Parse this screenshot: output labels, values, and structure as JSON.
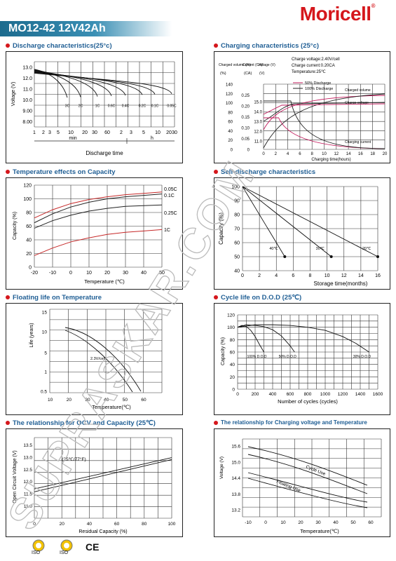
{
  "header": {
    "brand": "Moricell",
    "model": "MO12-42  12V42Ah"
  },
  "sections": {
    "discharge": "Discharge characteristics(25°c)",
    "charging": "Charging characteristics (25°c)",
    "temp_capacity": "Temperature effects on Capacity",
    "self_discharge": "Self-discharge characteristics",
    "floating_life": "Floating life on Temperature",
    "cycle_life": "Cycle life on D.O.D (25℃)",
    "ocv": "The relationship  for OCV and Capacity (25℃)",
    "charge_voltage_temp": "The relationship for Charging voltage and Temperature"
  },
  "chart_data": [
    {
      "type": "line",
      "id": "discharge",
      "ylabel": "Voltage (V)",
      "xlabel": "Discharge time",
      "x_ticks": [
        "1",
        "2",
        "3",
        "5",
        "10",
        "20",
        "30",
        "60",
        "2",
        "3",
        "5",
        "10",
        "20",
        "30"
      ],
      "x_units": [
        "min",
        "h"
      ],
      "y_ticks": [
        "8.00",
        "9.00",
        "10.0",
        "11.0",
        "12.0",
        "13.0"
      ],
      "ylim": [
        7.5,
        13.5
      ],
      "series_labels": [
        "3C",
        "2C",
        "1C",
        "0.6C",
        "0.4C",
        "0.2C",
        "0.1C",
        "0.05C"
      ]
    },
    {
      "type": "line",
      "id": "charging",
      "xlabel": "Charging time(hours)",
      "axis_titles": [
        "Charged volume (%)",
        "Current (CA)",
        "Voltage (V)"
      ],
      "axis_units": [
        "(%)",
        "(CA)",
        "(V)"
      ],
      "conditions": [
        "Charge voltage:2.40V/cell",
        "Charge current:0.20CA",
        "Temperature:25℃"
      ],
      "legend": [
        "50% Discharge",
        "100% Discharge"
      ],
      "annotations": [
        "Charged volume",
        "Charge voltage",
        "Charging current"
      ],
      "x_ticks": [
        "0",
        "2",
        "4",
        "6",
        "8",
        "10",
        "12",
        "14",
        "16",
        "18",
        "20"
      ],
      "pct_ticks": [
        "0",
        "20",
        "40",
        "60",
        "80",
        "100",
        "120",
        "140"
      ],
      "ca_ticks": [
        "0",
        "0.05",
        "0.10",
        "0.15",
        "0.20",
        "0.25"
      ],
      "v_ticks": [
        "11.0",
        "12.0",
        "13.0",
        "14.0",
        "15.0"
      ],
      "colors": {
        "fifty": "#c2185b",
        "hundred": "#222222"
      }
    },
    {
      "type": "line",
      "id": "temp_capacity",
      "ylabel": "Capacity  (%)",
      "xlabel": "Temperature (℃)",
      "x": [
        -20,
        -10,
        0,
        10,
        20,
        30,
        40,
        50
      ],
      "x_ticks": [
        "-20",
        "-10",
        "0",
        "10",
        "20",
        "30",
        "40",
        "50"
      ],
      "y_ticks": [
        "0",
        "20",
        "40",
        "60",
        "80",
        "100",
        "120"
      ],
      "ylim": [
        0,
        120
      ],
      "series": [
        {
          "name": "0.05C",
          "values": [
            72,
            84,
            93,
            99,
            103,
            106,
            108,
            110
          ],
          "color": "#c62828"
        },
        {
          "name": "0.1C",
          "values": [
            65,
            78,
            88,
            95,
            100,
            103,
            105,
            107
          ],
          "color": "#222222"
        },
        {
          "name": "0.25C",
          "values": [
            57,
            68,
            76,
            82,
            86,
            89,
            90,
            91
          ],
          "color": "#222222"
        },
        {
          "name": "1C",
          "values": [
            17,
            28,
            37,
            43,
            48,
            51,
            53,
            55
          ],
          "color": "#c62828"
        }
      ]
    },
    {
      "type": "line",
      "id": "self_discharge",
      "ylabel": "Capacity (%)",
      "xlabel": "Storage time(months)",
      "x_ticks": [
        "0",
        "2",
        "4",
        "6",
        "8",
        "10",
        "12",
        "14",
        "16"
      ],
      "y_ticks": [
        "40",
        "50",
        "60",
        "70",
        "80",
        "90",
        "100"
      ],
      "ylim": [
        40,
        100
      ],
      "series": [
        {
          "name": "40℃",
          "x": [
            0,
            5
          ],
          "values": [
            100,
            50
          ]
        },
        {
          "name": "30℃",
          "x": [
            0,
            10.5
          ],
          "values": [
            100,
            50
          ]
        },
        {
          "name": "20℃",
          "x": [
            0,
            16
          ],
          "values": [
            100,
            50
          ]
        }
      ]
    },
    {
      "type": "line",
      "id": "floating_life",
      "ylabel": "Life (years)",
      "xlabel": "Temperature(℃)",
      "x_ticks": [
        "10",
        "20",
        "30",
        "40",
        "50",
        "60"
      ],
      "y_ticks": [
        "0.5",
        "1",
        "5",
        "10",
        "15"
      ],
      "annotation": "2.3V/cell"
    },
    {
      "type": "line",
      "id": "cycle_life",
      "ylabel": "Capacity (%)",
      "xlabel": "Number of cycles (cycles)",
      "x_ticks": [
        "0",
        "200",
        "400",
        "600",
        "800",
        "1000",
        "1200",
        "1400",
        "1600"
      ],
      "y_ticks": [
        "0",
        "20",
        "40",
        "60",
        "80",
        "100",
        "120"
      ],
      "ylim": [
        0,
        120
      ],
      "series": [
        {
          "name": "100% D.O.D",
          "x": [
            0,
            50,
            100,
            150,
            200,
            250,
            300
          ],
          "values": [
            100,
            103,
            101,
            95,
            85,
            72,
            60
          ]
        },
        {
          "name": "50% D.O.D",
          "x": [
            0,
            100,
            200,
            300,
            400,
            500,
            600,
            650
          ],
          "values": [
            100,
            104,
            103,
            101,
            96,
            86,
            70,
            60
          ]
        },
        {
          "name": "30% D.O.D",
          "x": [
            0,
            200,
            400,
            600,
            800,
            1000,
            1200,
            1350,
            1500
          ],
          "values": [
            100,
            104,
            104,
            103,
            100,
            95,
            85,
            74,
            60
          ]
        }
      ]
    },
    {
      "type": "line",
      "id": "ocv",
      "ylabel": "Open Circuit Voltage (V)",
      "xlabel": "Residual Capacity (%)",
      "annotation": "(25℃/77°F)",
      "x_ticks": [
        "0",
        "20",
        "40",
        "60",
        "80",
        "100"
      ],
      "y_ticks": [
        "11.0",
        "11.5",
        "12.0",
        "12.5",
        "13.0",
        "13.5"
      ],
      "ylim": [
        10.5,
        13.8
      ],
      "series": [
        {
          "name": "upper",
          "x": [
            0,
            100
          ],
          "values": [
            11.7,
            12.98
          ]
        },
        {
          "name": "lower",
          "x": [
            0,
            100
          ],
          "values": [
            11.58,
            12.9
          ]
        }
      ]
    },
    {
      "type": "line",
      "id": "charge_voltage_temp",
      "ylabel": "Voltage (V)",
      "xlabel": "Temperature(℃)",
      "x_ticks": [
        "-10",
        "0",
        "10",
        "20",
        "30",
        "40",
        "50",
        "60"
      ],
      "y_ticks": [
        "13.2",
        "13.8",
        "14.4",
        "15.0",
        "15.6"
      ],
      "band_labels": [
        "Cycle Use",
        "Floating Use"
      ]
    }
  ],
  "watermark": "SUPRASKAR.COM",
  "certifications": [
    "ISO",
    "ISO",
    "CE"
  ]
}
